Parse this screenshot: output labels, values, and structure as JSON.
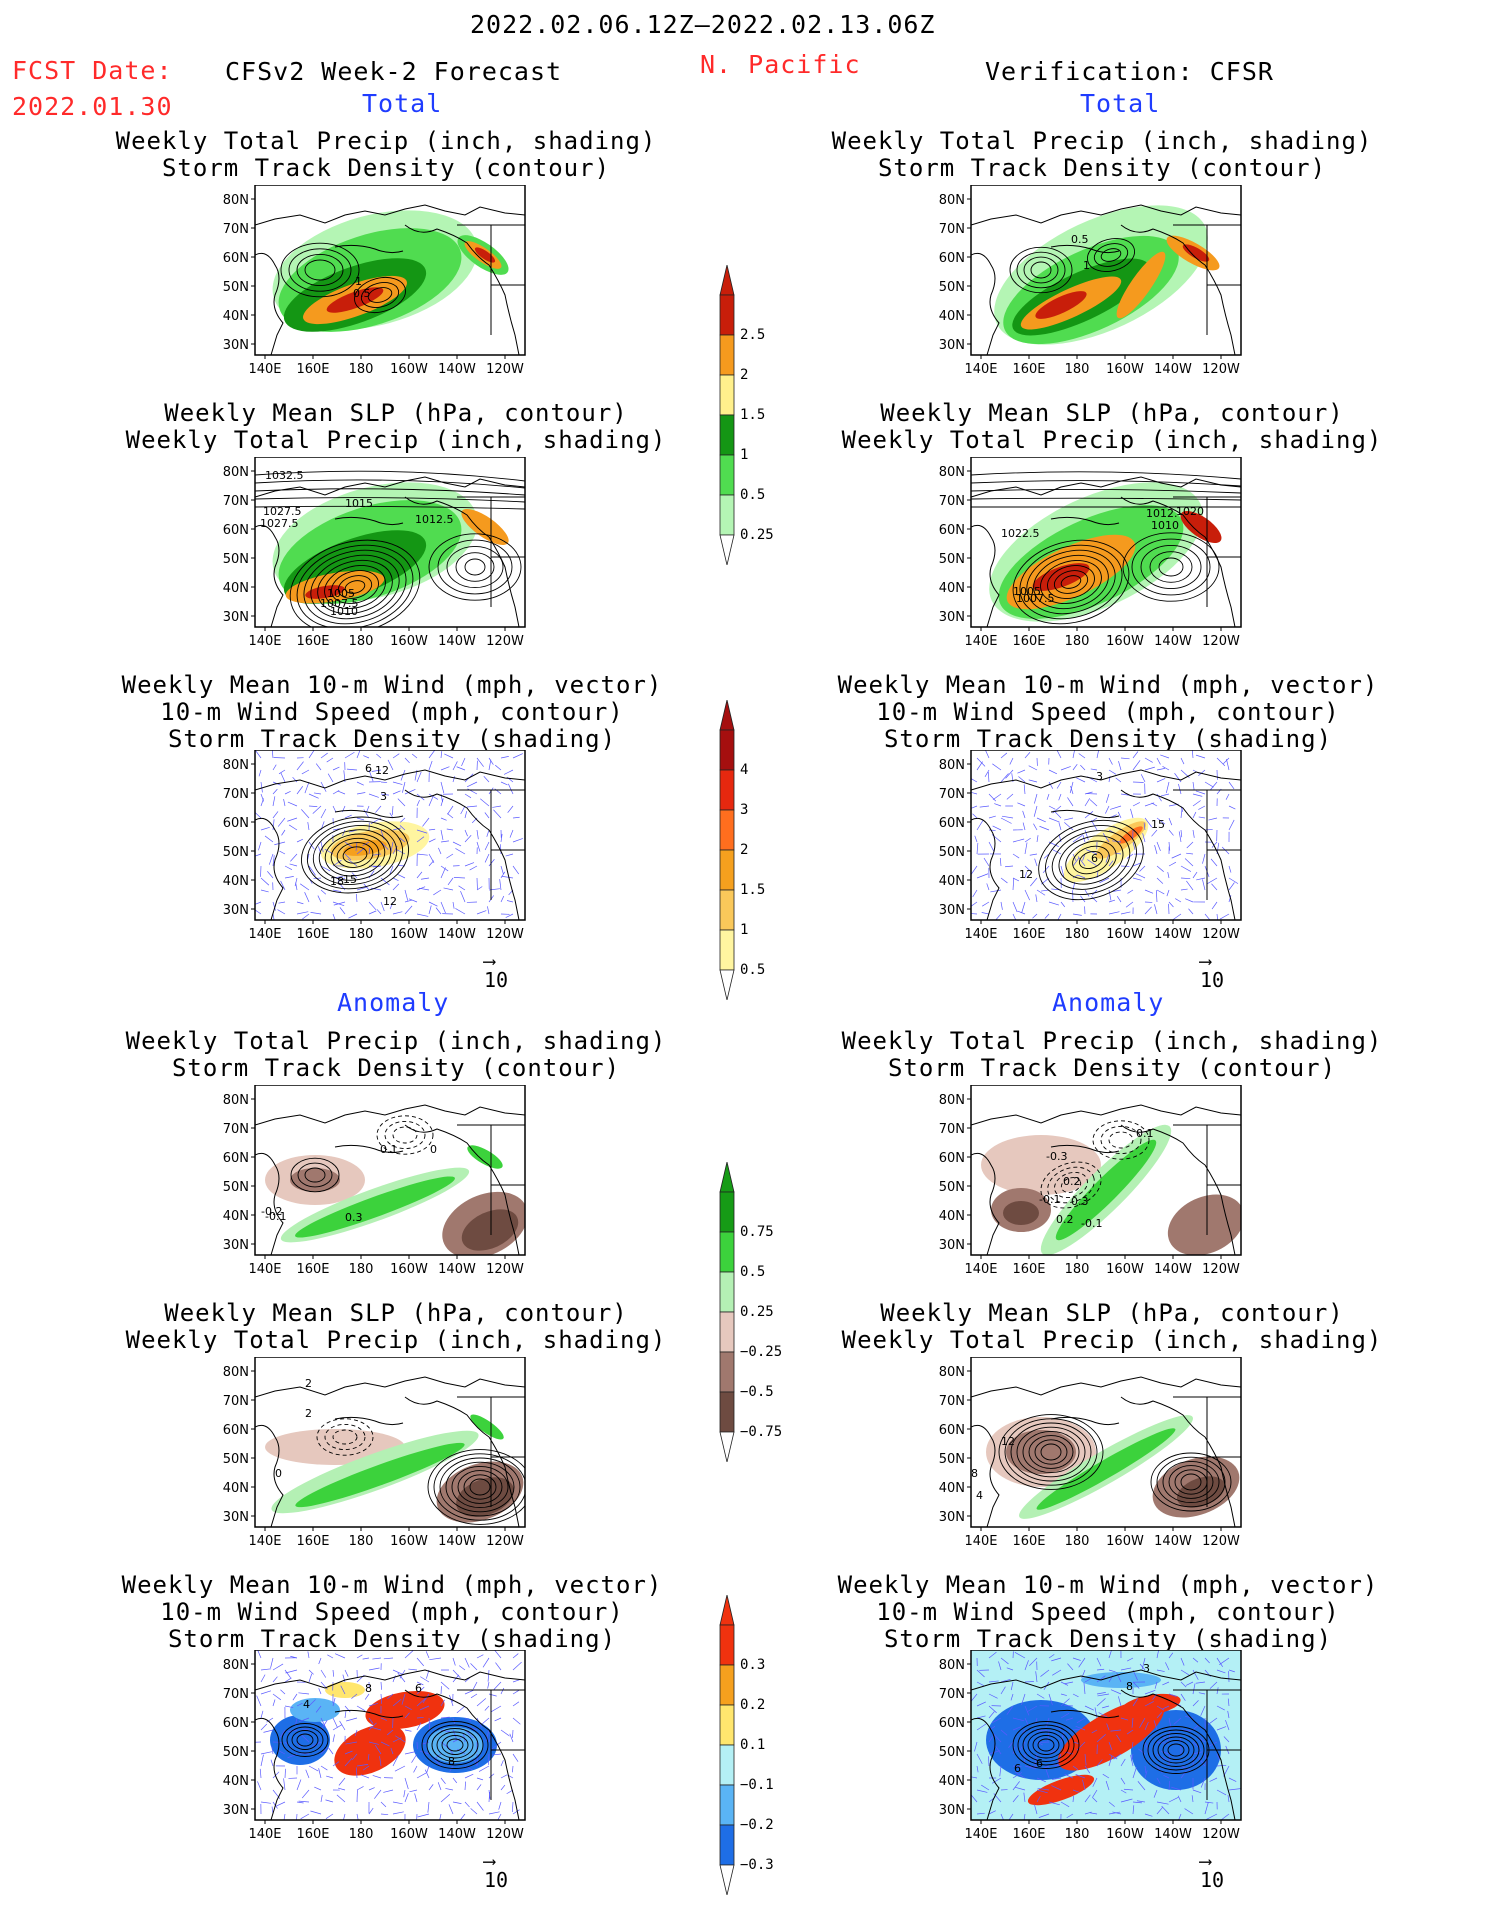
{
  "header": {
    "date_range": "2022.02.06.12Z–2022.02.13.06Z",
    "fcst_label": "FCST Date:",
    "fcst_date": "2022.01.30",
    "left_title": "CFSv2 Week-2 Forecast",
    "region": "N. Pacific",
    "right_title": "Verification: CFSR",
    "total_label_left": "Total",
    "total_label_right": "Total",
    "anomaly_label_left": "Anomaly",
    "anomaly_label_right": "Anomaly"
  },
  "titles": {
    "precip_storm": [
      "Weekly Total Precip (inch, shading)",
      "Storm Track Density (contour)"
    ],
    "slp_precip": [
      "Weekly Mean SLP (hPa, contour)",
      "Weekly Total Precip (inch, shading)"
    ],
    "wind_storm": [
      "Weekly Mean 10-m Wind (mph, vector)",
      "10-m Wind Speed (mph, contour)",
      "Storm Track Density (shading)"
    ]
  },
  "axes": {
    "lat_labels": [
      "80N",
      "70N",
      "60N",
      "50N",
      "40N",
      "30N"
    ],
    "lon_labels": [
      "140E",
      "160E",
      "180",
      "160W",
      "140W",
      "120W"
    ]
  },
  "vector_ref": "10",
  "colorbars": {
    "precip_total": [
      "2.5",
      "2",
      "1.5",
      "1",
      "0.5",
      "0.25"
    ],
    "storm_total": [
      "4",
      "3",
      "2",
      "1.5",
      "1",
      "0.5"
    ],
    "precip_anom": [
      "0.75",
      "0.5",
      "0.25",
      "−0.25",
      "−0.5",
      "−0.75"
    ],
    "storm_anom": [
      "0.3",
      "0.2",
      "0.1",
      "−0.1",
      "−0.2",
      "−0.3"
    ]
  },
  "colors": {
    "precip_total": [
      "#c81e0a",
      "#f59a1e",
      "#fff08c",
      "#149614",
      "#50dc50",
      "#b4f5b4"
    ],
    "storm_total": [
      "#a50f0f",
      "#e6280f",
      "#ff6e1e",
      "#f5a01e",
      "#fac85a",
      "#fff5a0"
    ],
    "precip_anom": [
      "#169b16",
      "#3cd23c",
      "#b4f0b4",
      "#e6c8be",
      "#a0786e",
      "#6e4b41"
    ],
    "storm_anom": [
      "#f0320f",
      "#f5a01e",
      "#ffe66e",
      "#b4f0f5",
      "#5ab4f5",
      "#1e6ee6"
    ]
  },
  "contour_labels": {
    "p1": [
      "1",
      "0.5"
    ],
    "p2": [
      "1032.5",
      "1027.5",
      "1027.5",
      "1015",
      "1012.5",
      "1007.5",
      "1010",
      "1005"
    ],
    "p3": [
      "6",
      "12",
      "3",
      "18",
      "15",
      "12"
    ],
    "p4": [
      "-0.1",
      "0.1",
      "-0.2",
      "0.3",
      "0"
    ],
    "p5": [
      "2",
      "0",
      "2"
    ],
    "p6": [
      "4",
      "8",
      "6",
      "8"
    ],
    "v1": [
      "0.5",
      "1"
    ],
    "v2": [
      "1012.",
      "1020",
      "1010",
      "1022.5",
      "1007.5",
      "1005"
    ],
    "v3": [
      "15",
      "6",
      "3",
      "12"
    ],
    "v4": [
      "0.1",
      "-0.3",
      "0.2",
      "-0.1",
      "0.3",
      "0.2",
      "-0.1"
    ],
    "v5": [
      "12",
      "8",
      "4"
    ],
    "v6": [
      "3",
      "8",
      "6",
      "6"
    ]
  }
}
